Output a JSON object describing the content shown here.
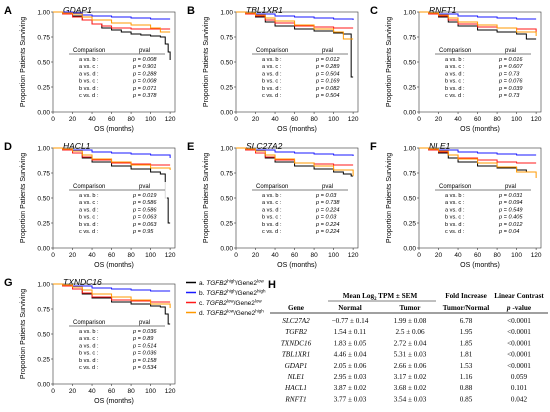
{
  "axis": {
    "ylabel": "Proportion Patients Surviving",
    "xlabel": "OS (months)",
    "yticks": [
      "0.00",
      "0.25",
      "0.50",
      "0.75",
      "1.00"
    ],
    "xticks": [
      "0",
      "20",
      "40",
      "60",
      "80",
      "100",
      "120"
    ]
  },
  "table_header": {
    "comparison": "Comparison",
    "pval": "pval"
  },
  "colors": {
    "a": "#000000",
    "b": "#1a1aff",
    "c": "#ff1a1a",
    "d": "#ff9900"
  },
  "legend": [
    {
      "key": "a",
      "prefix": "a. ",
      "gene": "TGFB2",
      "sup1": "high",
      "mid": "/Gene2",
      "sup2": "low"
    },
    {
      "key": "b",
      "prefix": "b. ",
      "gene": "TGFB2",
      "sup1": "high",
      "mid": "/Gene2",
      "sup2": "high"
    },
    {
      "key": "c",
      "prefix": "c. ",
      "gene": "TGFB2",
      "sup1": "low",
      "mid": "/Gene2",
      "sup2": "low"
    },
    {
      "key": "d",
      "prefix": "d. ",
      "gene": "TGFB2",
      "sup1": "low",
      "mid": "/Gene2",
      "sup2": "high"
    }
  ],
  "chart_data": [
    {
      "type": "line",
      "panel": "A",
      "title": "GDAP1",
      "xlabel": "OS (months)",
      "ylabel": "Proportion Patients Surviving",
      "xlim": [
        0,
        125
      ],
      "ylim": [
        0,
        1
      ],
      "comparisons": [
        [
          "a vs. b :",
          "p = 0.008"
        ],
        [
          "a vs. c :",
          "p = 0.901"
        ],
        [
          "a vs. d :",
          "p = 0.288"
        ],
        [
          "b vs. c :",
          "p = 0.008"
        ],
        [
          "b vs. d :",
          "p = 0.071"
        ],
        [
          "c vs. d :",
          "p = 0.378"
        ]
      ],
      "series": [
        {
          "key": "a",
          "x": [
            0,
            10,
            20,
            30,
            40,
            50,
            60,
            70,
            80,
            90,
            100,
            110,
            115,
            118,
            120
          ],
          "y": [
            1,
            0.98,
            0.96,
            0.92,
            0.88,
            0.84,
            0.82,
            0.8,
            0.78,
            0.77,
            0.76,
            0.75,
            0.68,
            0.6,
            0.52
          ]
        },
        {
          "key": "b",
          "x": [
            0,
            10,
            20,
            30,
            40,
            60,
            80,
            100,
            110,
            120
          ],
          "y": [
            1,
            1,
            0.99,
            0.97,
            0.96,
            0.95,
            0.94,
            0.93,
            0.93,
            0.93
          ]
        },
        {
          "key": "c",
          "x": [
            0,
            10,
            20,
            30,
            40,
            50,
            60,
            80,
            100,
            120
          ],
          "y": [
            1,
            0.98,
            0.95,
            0.92,
            0.88,
            0.86,
            0.84,
            0.83,
            0.83,
            0.83
          ]
        },
        {
          "key": "d",
          "x": [
            0,
            10,
            20,
            30,
            40,
            60,
            80,
            100,
            110,
            120
          ],
          "y": [
            1,
            0.99,
            0.98,
            0.95,
            0.92,
            0.89,
            0.87,
            0.84,
            0.8,
            0.8
          ]
        }
      ]
    },
    {
      "type": "line",
      "panel": "B",
      "title": "TBL1XR1",
      "xlabel": "OS (months)",
      "ylabel": "Proportion Patients Surviving",
      "xlim": [
        0,
        125
      ],
      "ylim": [
        0,
        1
      ],
      "comparisons": [
        [
          "a vs. b :",
          "p = 0.012"
        ],
        [
          "a vs. c :",
          "p = 0.289"
        ],
        [
          "a vs. d :",
          "p = 0.504"
        ],
        [
          "b vs. c :",
          "p = 0.169"
        ],
        [
          "b vs. d :",
          "p = 0.082"
        ],
        [
          "c vs. d :",
          "p = 0.504"
        ]
      ],
      "series": [
        {
          "key": "a",
          "x": [
            0,
            10,
            20,
            30,
            40,
            60,
            80,
            100,
            110,
            115,
            118,
            120
          ],
          "y": [
            1,
            0.98,
            0.95,
            0.9,
            0.86,
            0.83,
            0.81,
            0.79,
            0.78,
            0.78,
            0.35,
            0.35
          ]
        },
        {
          "key": "b",
          "x": [
            0,
            10,
            20,
            40,
            60,
            80,
            100,
            120
          ],
          "y": [
            1,
            0.99,
            0.98,
            0.96,
            0.95,
            0.94,
            0.93,
            0.92
          ]
        },
        {
          "key": "c",
          "x": [
            0,
            10,
            20,
            30,
            40,
            60,
            80,
            100,
            120
          ],
          "y": [
            1,
            0.98,
            0.96,
            0.92,
            0.89,
            0.86,
            0.85,
            0.84,
            0.84
          ]
        },
        {
          "key": "d",
          "x": [
            0,
            10,
            20,
            30,
            40,
            60,
            80,
            100,
            110,
            120
          ],
          "y": [
            1,
            0.99,
            0.97,
            0.94,
            0.91,
            0.87,
            0.83,
            0.8,
            0.73,
            0.73
          ]
        }
      ]
    },
    {
      "type": "line",
      "panel": "C",
      "title": "RNFT1",
      "xlabel": "OS (months)",
      "ylabel": "Proportion Patients Surviving",
      "xlim": [
        0,
        125
      ],
      "ylim": [
        0,
        1
      ],
      "comparisons": [
        [
          "a vs. b :",
          "p = 0.016"
        ],
        [
          "a vs. c :",
          "p = 0.607"
        ],
        [
          "a vs. d :",
          "p = 0.73"
        ],
        [
          "b vs. c :",
          "p = 0.076"
        ],
        [
          "b vs. d :",
          "p = 0.039"
        ],
        [
          "c vs. d :",
          "p = 0.73"
        ]
      ],
      "series": [
        {
          "key": "a",
          "x": [
            0,
            10,
            20,
            30,
            40,
            60,
            80,
            100,
            110,
            120
          ],
          "y": [
            1,
            0.98,
            0.95,
            0.9,
            0.86,
            0.82,
            0.8,
            0.78,
            0.73,
            0.73
          ]
        },
        {
          "key": "b",
          "x": [
            0,
            10,
            20,
            40,
            60,
            80,
            100,
            120
          ],
          "y": [
            1,
            0.99,
            0.98,
            0.96,
            0.95,
            0.94,
            0.93,
            0.93
          ]
        },
        {
          "key": "c",
          "x": [
            0,
            10,
            20,
            30,
            40,
            60,
            80,
            100,
            120
          ],
          "y": [
            1,
            0.98,
            0.96,
            0.92,
            0.88,
            0.85,
            0.84,
            0.83,
            0.8
          ]
        },
        {
          "key": "d",
          "x": [
            0,
            10,
            20,
            30,
            40,
            60,
            80,
            100,
            120
          ],
          "y": [
            1,
            0.99,
            0.97,
            0.94,
            0.9,
            0.87,
            0.84,
            0.8,
            0.76
          ]
        }
      ]
    },
    {
      "type": "line",
      "panel": "D",
      "title": "HACL1",
      "xlabel": "OS (months)",
      "ylabel": "Proportion Patients Surviving",
      "xlim": [
        0,
        125
      ],
      "ylim": [
        0,
        1
      ],
      "comparisons": [
        [
          "a vs. b :",
          "p = 0.019"
        ],
        [
          "a vs. c :",
          "p = 0.586"
        ],
        [
          "a vs. d :",
          "p = 0.586"
        ],
        [
          "b vs. c :",
          "p = 0.063"
        ],
        [
          "b vs. d :",
          "p = 0.063"
        ],
        [
          "c vs. d :",
          "p = 0.95"
        ]
      ],
      "series": [
        {
          "key": "a",
          "x": [
            0,
            10,
            20,
            30,
            40,
            60,
            80,
            100,
            110,
            115,
            118,
            120
          ],
          "y": [
            1,
            0.98,
            0.95,
            0.9,
            0.86,
            0.82,
            0.79,
            0.76,
            0.74,
            0.5,
            0.25,
            0.25
          ]
        },
        {
          "key": "b",
          "x": [
            0,
            10,
            20,
            40,
            60,
            80,
            100,
            120
          ],
          "y": [
            1,
            0.99,
            0.98,
            0.96,
            0.95,
            0.94,
            0.93,
            0.9
          ]
        },
        {
          "key": "c",
          "x": [
            0,
            10,
            20,
            30,
            40,
            60,
            80,
            100,
            120
          ],
          "y": [
            1,
            0.98,
            0.95,
            0.91,
            0.88,
            0.85,
            0.84,
            0.83,
            0.83
          ]
        },
        {
          "key": "d",
          "x": [
            0,
            10,
            20,
            30,
            40,
            60,
            80,
            100,
            120
          ],
          "y": [
            1,
            0.99,
            0.97,
            0.93,
            0.89,
            0.86,
            0.83,
            0.8,
            0.78
          ]
        }
      ]
    },
    {
      "type": "line",
      "panel": "E",
      "title": "SLC27A2",
      "xlabel": "OS (months)",
      "ylabel": "Proportion Patients Surviving",
      "xlim": [
        0,
        125
      ],
      "ylim": [
        0,
        1
      ],
      "comparisons": [
        [
          "a vs. b :",
          "p = 0.03"
        ],
        [
          "a vs. c :",
          "p = 0.738"
        ],
        [
          "a vs. d :",
          "p = 0.224"
        ],
        [
          "b vs. c :",
          "p = 0.03"
        ],
        [
          "b vs. d :",
          "p = 0.224"
        ],
        [
          "c vs. d :",
          "p = 0.224"
        ]
      ],
      "series": [
        {
          "key": "a",
          "x": [
            0,
            10,
            20,
            30,
            40,
            60,
            80,
            100,
            110,
            118,
            120
          ],
          "y": [
            1,
            0.98,
            0.95,
            0.9,
            0.86,
            0.82,
            0.79,
            0.76,
            0.74,
            0.72,
            0.72
          ]
        },
        {
          "key": "b",
          "x": [
            0,
            10,
            20,
            40,
            60,
            80,
            100,
            120
          ],
          "y": [
            1,
            0.99,
            0.98,
            0.96,
            0.95,
            0.94,
            0.93,
            0.92
          ]
        },
        {
          "key": "c",
          "x": [
            0,
            10,
            20,
            30,
            40,
            60,
            80,
            100,
            120
          ],
          "y": [
            1,
            0.98,
            0.95,
            0.91,
            0.88,
            0.85,
            0.84,
            0.83,
            0.83
          ]
        },
        {
          "key": "d",
          "x": [
            0,
            10,
            20,
            30,
            40,
            60,
            80,
            100,
            120
          ],
          "y": [
            1,
            0.99,
            0.97,
            0.93,
            0.89,
            0.85,
            0.82,
            0.78,
            0.72
          ]
        }
      ]
    },
    {
      "type": "line",
      "panel": "F",
      "title": "NLE1",
      "xlabel": "OS (months)",
      "ylabel": "Proportion Patients Surviving",
      "xlim": [
        0,
        125
      ],
      "ylim": [
        0,
        1
      ],
      "comparisons": [
        [
          "a vs. b :",
          "p = 0.031"
        ],
        [
          "a vs. c :",
          "p = 0.094"
        ],
        [
          "a vs. d :",
          "p = 0.549"
        ],
        [
          "b vs. c :",
          "p = 0.405"
        ],
        [
          "b vs. d :",
          "p = 0.012"
        ],
        [
          "c vs. d :",
          "p = 0.04"
        ]
      ],
      "series": [
        {
          "key": "a",
          "x": [
            0,
            10,
            20,
            30,
            40,
            60,
            80,
            100,
            110,
            120
          ],
          "y": [
            1,
            0.98,
            0.95,
            0.9,
            0.86,
            0.82,
            0.8,
            0.78,
            0.76,
            0.76
          ]
        },
        {
          "key": "b",
          "x": [
            0,
            10,
            20,
            40,
            60,
            80,
            100,
            120
          ],
          "y": [
            1,
            0.99,
            0.98,
            0.96,
            0.95,
            0.94,
            0.93,
            0.93
          ]
        },
        {
          "key": "c",
          "x": [
            0,
            10,
            20,
            30,
            40,
            60,
            80,
            100,
            120
          ],
          "y": [
            1,
            0.98,
            0.96,
            0.93,
            0.9,
            0.88,
            0.86,
            0.85,
            0.85
          ]
        },
        {
          "key": "d",
          "x": [
            0,
            10,
            20,
            30,
            40,
            60,
            80,
            100,
            120
          ],
          "y": [
            1,
            0.99,
            0.97,
            0.93,
            0.89,
            0.85,
            0.81,
            0.76,
            0.7
          ]
        }
      ]
    },
    {
      "type": "line",
      "panel": "G",
      "title": "TXNDC16",
      "xlabel": "OS (months)",
      "ylabel": "Proportion Patients Surviving",
      "xlim": [
        0,
        125
      ],
      "ylim": [
        0,
        1
      ],
      "comparisons": [
        [
          "a vs. b :",
          "p = 0.036"
        ],
        [
          "a vs. c :",
          "p = 0.89"
        ],
        [
          "a vs. d :",
          "p = 0.514"
        ],
        [
          "b vs. c :",
          "p = 0.036"
        ],
        [
          "b vs. d :",
          "p = 0.158"
        ],
        [
          "c vs. d :",
          "p = 0.534"
        ]
      ],
      "series": [
        {
          "key": "a",
          "x": [
            0,
            10,
            20,
            30,
            40,
            60,
            80,
            100,
            110,
            115,
            118,
            120
          ],
          "y": [
            1,
            0.98,
            0.95,
            0.9,
            0.86,
            0.82,
            0.8,
            0.78,
            0.77,
            0.7,
            0.6,
            0.6
          ]
        },
        {
          "key": "b",
          "x": [
            0,
            10,
            20,
            40,
            60,
            80,
            100,
            120
          ],
          "y": [
            1,
            0.99,
            0.98,
            0.96,
            0.95,
            0.94,
            0.93,
            0.93
          ]
        },
        {
          "key": "c",
          "x": [
            0,
            10,
            20,
            30,
            40,
            60,
            80,
            100,
            120
          ],
          "y": [
            1,
            0.98,
            0.95,
            0.91,
            0.87,
            0.84,
            0.83,
            0.82,
            0.82
          ]
        },
        {
          "key": "d",
          "x": [
            0,
            10,
            20,
            30,
            40,
            60,
            80,
            100,
            120
          ],
          "y": [
            1,
            0.99,
            0.97,
            0.94,
            0.9,
            0.87,
            0.84,
            0.8,
            0.76
          ]
        }
      ]
    },
    {
      "type": "table",
      "panel": "H",
      "header_top": [
        "Mean Log",
        "TPM ± SEM",
        "Fold Increase",
        "Linear Contrast"
      ],
      "header_bottom": [
        "Gene",
        "Normal",
        "Tumor",
        "Tumor/Normal",
        "-value"
      ],
      "rows": [
        [
          "SLC27A2",
          "−0.77 ± 0.14",
          "1.99 ± 0.08",
          "6.78",
          "<0.0001"
        ],
        [
          "TGFB2",
          "1.54 ± 0.11",
          "2.5 ± 0.06",
          "1.95",
          "<0.0001"
        ],
        [
          "TXNDC16",
          "1.83 ± 0.05",
          "2.72 ± 0.04",
          "1.85",
          "<0.0001"
        ],
        [
          "TBL1XR1",
          "4.46 ± 0.04",
          "5.31 ± 0.03",
          "1.81",
          "<0.0001"
        ],
        [
          "GDAP1",
          "2.05 ± 0.06",
          "2.66 ± 0.06",
          "1.53",
          "<0.0001"
        ],
        [
          "NLE1",
          "2.95 ± 0.03",
          "3.17 ± 0.02",
          "1.16",
          "0.059"
        ],
        [
          "HACL1",
          "3.87 ± 0.02",
          "3.68 ± 0.02",
          "0.88",
          "0.101"
        ],
        [
          "RNFT1",
          "3.77 ± 0.03",
          "3.54 ± 0.03",
          "0.85",
          "0.042"
        ]
      ]
    }
  ]
}
